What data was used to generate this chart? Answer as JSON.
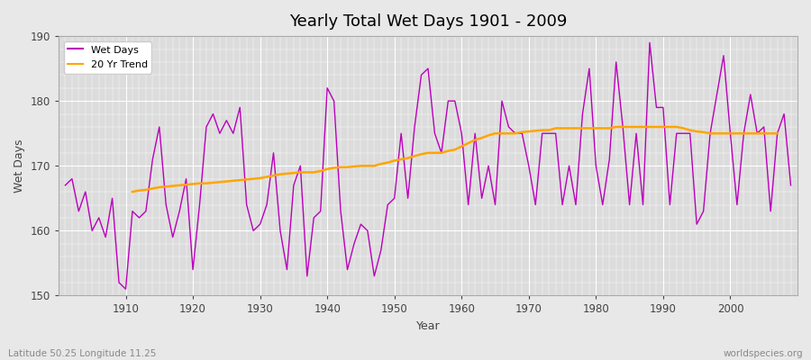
{
  "title": "Yearly Total Wet Days 1901 - 2009",
  "xlabel": "Year",
  "ylabel": "Wet Days",
  "subtitle_left": "Latitude 50.25 Longitude 11.25",
  "subtitle_right": "worldspecies.org",
  "ylim": [
    150,
    190
  ],
  "yticks": [
    150,
    160,
    170,
    180,
    190
  ],
  "line_color": "#bb00bb",
  "trend_color": "#ffa500",
  "fig_bg_color": "#e8e8e8",
  "plot_bg_color": "#dcdcdc",
  "legend_wet_days": "Wet Days",
  "legend_trend": "20 Yr Trend",
  "years": [
    1901,
    1902,
    1903,
    1904,
    1905,
    1906,
    1907,
    1908,
    1909,
    1910,
    1911,
    1912,
    1913,
    1914,
    1915,
    1916,
    1917,
    1918,
    1919,
    1920,
    1921,
    1922,
    1923,
    1924,
    1925,
    1926,
    1927,
    1928,
    1929,
    1930,
    1931,
    1932,
    1933,
    1934,
    1935,
    1936,
    1937,
    1938,
    1939,
    1940,
    1941,
    1942,
    1943,
    1944,
    1945,
    1946,
    1947,
    1948,
    1949,
    1950,
    1951,
    1952,
    1953,
    1954,
    1955,
    1956,
    1957,
    1958,
    1959,
    1960,
    1961,
    1962,
    1963,
    1964,
    1965,
    1966,
    1967,
    1968,
    1969,
    1970,
    1971,
    1972,
    1973,
    1974,
    1975,
    1976,
    1977,
    1978,
    1979,
    1980,
    1981,
    1982,
    1983,
    1984,
    1985,
    1986,
    1987,
    1988,
    1989,
    1990,
    1991,
    1992,
    1993,
    1994,
    1995,
    1996,
    1997,
    1998,
    1999,
    2000,
    2001,
    2002,
    2003,
    2004,
    2005,
    2006,
    2007,
    2008,
    2009
  ],
  "wet_days": [
    167,
    168,
    163,
    166,
    160,
    162,
    159,
    165,
    152,
    151,
    163,
    162,
    163,
    171,
    176,
    164,
    159,
    163,
    168,
    154,
    164,
    176,
    178,
    175,
    177,
    175,
    179,
    164,
    160,
    161,
    164,
    172,
    160,
    154,
    167,
    170,
    153,
    162,
    163,
    182,
    180,
    163,
    154,
    158,
    161,
    160,
    153,
    157,
    164,
    165,
    175,
    165,
    176,
    184,
    185,
    175,
    172,
    180,
    180,
    175,
    164,
    175,
    165,
    170,
    164,
    180,
    176,
    175,
    175,
    170,
    164,
    175,
    175,
    175,
    164,
    170,
    164,
    178,
    185,
    170,
    164,
    171,
    186,
    176,
    164,
    175,
    164,
    189,
    179,
    179,
    164,
    175,
    175,
    175,
    161,
    163,
    175,
    181,
    187,
    175,
    164,
    175,
    181,
    175,
    176,
    163,
    175,
    178,
    167
  ],
  "trend": [
    null,
    null,
    null,
    null,
    null,
    null,
    null,
    null,
    null,
    null,
    166.0,
    166.2,
    166.3,
    166.5,
    166.7,
    166.8,
    166.9,
    167.0,
    167.1,
    167.2,
    167.3,
    167.3,
    167.4,
    167.5,
    167.6,
    167.7,
    167.8,
    167.9,
    168.0,
    168.1,
    168.3,
    168.5,
    168.7,
    168.8,
    168.9,
    169.0,
    169.0,
    169.0,
    169.2,
    169.5,
    169.7,
    169.8,
    169.8,
    169.9,
    170.0,
    170.0,
    170.0,
    170.3,
    170.5,
    170.8,
    171.0,
    171.2,
    171.5,
    171.8,
    172.0,
    172.0,
    172.0,
    172.3,
    172.5,
    173.0,
    173.5,
    174.0,
    174.3,
    174.7,
    175.0,
    175.0,
    175.0,
    175.0,
    175.2,
    175.3,
    175.4,
    175.5,
    175.5,
    175.8,
    175.8,
    175.8,
    175.8,
    175.8,
    175.8,
    175.8,
    175.8,
    175.8,
    176.0,
    176.0,
    176.0,
    176.0,
    176.0,
    176.0,
    176.0,
    176.0,
    176.0,
    176.0,
    175.8,
    175.5,
    175.3,
    175.2,
    175.0,
    175.0,
    175.0,
    175.0,
    175.0,
    175.0,
    175.0,
    175.0,
    175.0,
    175.0,
    175.0,
    null,
    null
  ]
}
